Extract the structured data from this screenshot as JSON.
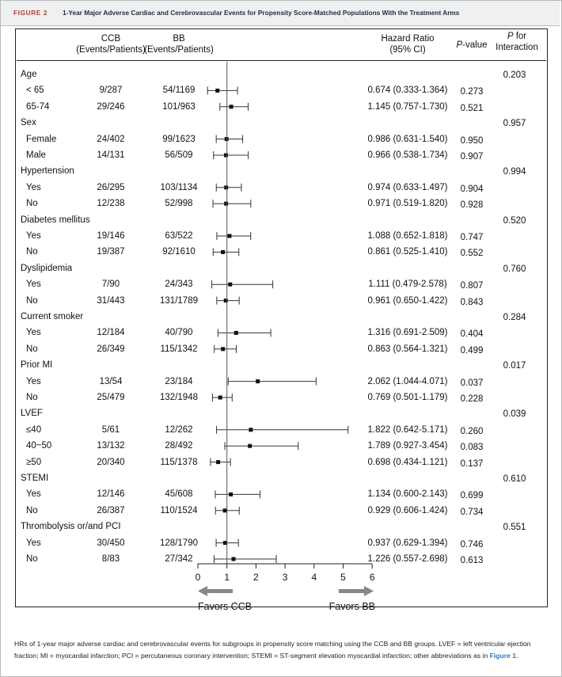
{
  "figure": {
    "label": "FIGURE 2",
    "title": "1-Year Major Adverse Cardiac and Cerebrovascular Events for Propensity Score-Matched Populations With the Treatment Arms"
  },
  "headers": {
    "ccb_line1": "CCB",
    "ccb_line2": "(Events/Patients)",
    "bb_line1": "BB",
    "bb_line2": "(Events/Patients)",
    "hr_line1": "Hazard Ratio",
    "hr_line2": "(95% CI)",
    "pvalue_p": "P",
    "pvalue_rest": "-value",
    "pint_p": "P",
    "pint_rest": " for",
    "pint_line2": "Interaction"
  },
  "chart_data": {
    "type": "forest",
    "x_axis": {
      "min": 0,
      "max": 6,
      "ticks": [
        0,
        1,
        2,
        3,
        4,
        5,
        6
      ],
      "reference_line": 1
    },
    "favors_left": "Favors CCB",
    "favors_right": "Favors BB",
    "groups": [
      {
        "name": "Age",
        "p_interaction": "0.203",
        "rows": [
          {
            "label": "< 65",
            "ccb": "9/287",
            "bb": "54/1169",
            "hr_text": "0.674 (0.333-1.364)",
            "hr": 0.674,
            "lo": 0.333,
            "hi": 1.364,
            "p": "0.273"
          },
          {
            "label": "65-74",
            "ccb": "29/246",
            "bb": "101/963",
            "hr_text": "1.145 (0.757-1.730)",
            "hr": 1.145,
            "lo": 0.757,
            "hi": 1.73,
            "p": "0.521"
          }
        ]
      },
      {
        "name": "Sex",
        "p_interaction": "0.957",
        "rows": [
          {
            "label": "Female",
            "ccb": "24/402",
            "bb": "99/1623",
            "hr_text": "0.986 (0.631-1.540)",
            "hr": 0.986,
            "lo": 0.631,
            "hi": 1.54,
            "p": "0.950"
          },
          {
            "label": "Male",
            "ccb": "14/131",
            "bb": "56/509",
            "hr_text": "0.966 (0.538-1.734)",
            "hr": 0.966,
            "lo": 0.538,
            "hi": 1.734,
            "p": "0.907"
          }
        ]
      },
      {
        "name": "Hypertension",
        "p_interaction": "0.994",
        "rows": [
          {
            "label": "Yes",
            "ccb": "26/295",
            "bb": "103/1134",
            "hr_text": "0.974 (0.633-1.497)",
            "hr": 0.974,
            "lo": 0.633,
            "hi": 1.497,
            "p": "0.904"
          },
          {
            "label": "No",
            "ccb": "12/238",
            "bb": "52/998",
            "hr_text": "0.971 (0.519-1.820)",
            "hr": 0.971,
            "lo": 0.519,
            "hi": 1.82,
            "p": "0.928"
          }
        ]
      },
      {
        "name": "Diabetes mellitus",
        "p_interaction": "0.520",
        "rows": [
          {
            "label": "Yes",
            "ccb": "19/146",
            "bb": "63/522",
            "hr_text": "1.088 (0.652-1.818)",
            "hr": 1.088,
            "lo": 0.652,
            "hi": 1.818,
            "p": "0.747"
          },
          {
            "label": "No",
            "ccb": "19/387",
            "bb": "92/1610",
            "hr_text": "0.861 (0.525-1.410)",
            "hr": 0.861,
            "lo": 0.525,
            "hi": 1.41,
            "p": "0.552"
          }
        ]
      },
      {
        "name": "Dyslipidemia",
        "p_interaction": "0.760",
        "rows": [
          {
            "label": "Yes",
            "ccb": "7/90",
            "bb": "24/343",
            "hr_text": "1.111 (0.479-2.578)",
            "hr": 1.111,
            "lo": 0.479,
            "hi": 2.578,
            "p": "0.807"
          },
          {
            "label": "No",
            "ccb": "31/443",
            "bb": "131/1789",
            "hr_text": "0.961 (0.650-1.422)",
            "hr": 0.961,
            "lo": 0.65,
            "hi": 1.422,
            "p": "0.843"
          }
        ]
      },
      {
        "name": "Current smoker",
        "p_interaction": "0.284",
        "rows": [
          {
            "label": "Yes",
            "ccb": "12/184",
            "bb": "40/790",
            "hr_text": "1.316 (0.691-2.509)",
            "hr": 1.316,
            "lo": 0.691,
            "hi": 2.509,
            "p": "0.404"
          },
          {
            "label": "No",
            "ccb": "26/349",
            "bb": "115/1342",
            "hr_text": "0.863 (0.564-1.321)",
            "hr": 0.863,
            "lo": 0.564,
            "hi": 1.321,
            "p": "0.499"
          }
        ]
      },
      {
        "name": "Prior MI",
        "p_interaction": "0.017",
        "rows": [
          {
            "label": "Yes",
            "ccb": "13/54",
            "bb": "23/184",
            "hr_text": "2.062 (1.044-4.071)",
            "hr": 2.062,
            "lo": 1.044,
            "hi": 4.071,
            "p": "0.037"
          },
          {
            "label": "No",
            "ccb": "25/479",
            "bb": "132/1948",
            "hr_text": "0.769 (0.501-1.179)",
            "hr": 0.769,
            "lo": 0.501,
            "hi": 1.179,
            "p": "0.228"
          }
        ]
      },
      {
        "name": "LVEF",
        "p_interaction": "0.039",
        "rows": [
          {
            "label": "≤40",
            "ccb": "5/61",
            "bb": "12/262",
            "hr_text": "1.822 (0.642-5.171)",
            "hr": 1.822,
            "lo": 0.642,
            "hi": 5.171,
            "p": "0.260"
          },
          {
            "label": "40~50",
            "ccb": "13/132",
            "bb": "28/492",
            "hr_text": "1.789 (0.927-3.454)",
            "hr": 1.789,
            "lo": 0.927,
            "hi": 3.454,
            "p": "0.083"
          },
          {
            "label": "≥50",
            "ccb": "20/340",
            "bb": "115/1378",
            "hr_text": "0.698 (0.434-1.121)",
            "hr": 0.698,
            "lo": 0.434,
            "hi": 1.121,
            "p": "0.137"
          }
        ]
      },
      {
        "name": "STEMI",
        "p_interaction": "0.610",
        "rows": [
          {
            "label": "Yes",
            "ccb": "12/146",
            "bb": "45/608",
            "hr_text": "1.134 (0.600-2.143)",
            "hr": 1.134,
            "lo": 0.6,
            "hi": 2.143,
            "p": "0.699"
          },
          {
            "label": "No",
            "ccb": "26/387",
            "bb": "110/1524",
            "hr_text": "0.929 (0.606-1.424)",
            "hr": 0.929,
            "lo": 0.606,
            "hi": 1.424,
            "p": "0.734"
          }
        ]
      },
      {
        "name": "Thrombolysis or/and PCI",
        "p_interaction": "0.551",
        "rows": [
          {
            "label": "Yes",
            "ccb": "30/450",
            "bb": "128/1790",
            "hr_text": "0.937 (0.629-1.394)",
            "hr": 0.937,
            "lo": 0.629,
            "hi": 1.394,
            "p": "0.746"
          },
          {
            "label": "No",
            "ccb": "8/83",
            "bb": "27/342",
            "hr_text": "1.226 (0.557-2.698)",
            "hr": 1.226,
            "lo": 0.557,
            "hi": 2.698,
            "p": "0.613"
          }
        ]
      }
    ]
  },
  "footer": {
    "text": "HRs of 1-year major adverse cardiac and cerebrovascular events for subgroups in propensity score matching using the CCB and BB groups. LVEF = left ventricular ejection fraction; MI = myocardial infarction; PCI = percutaneous coronary intervention; STEMI = ST-segment elevation myocardial infarction; other abbreviations as in ",
    "link": "Figure 1",
    "end": "."
  }
}
